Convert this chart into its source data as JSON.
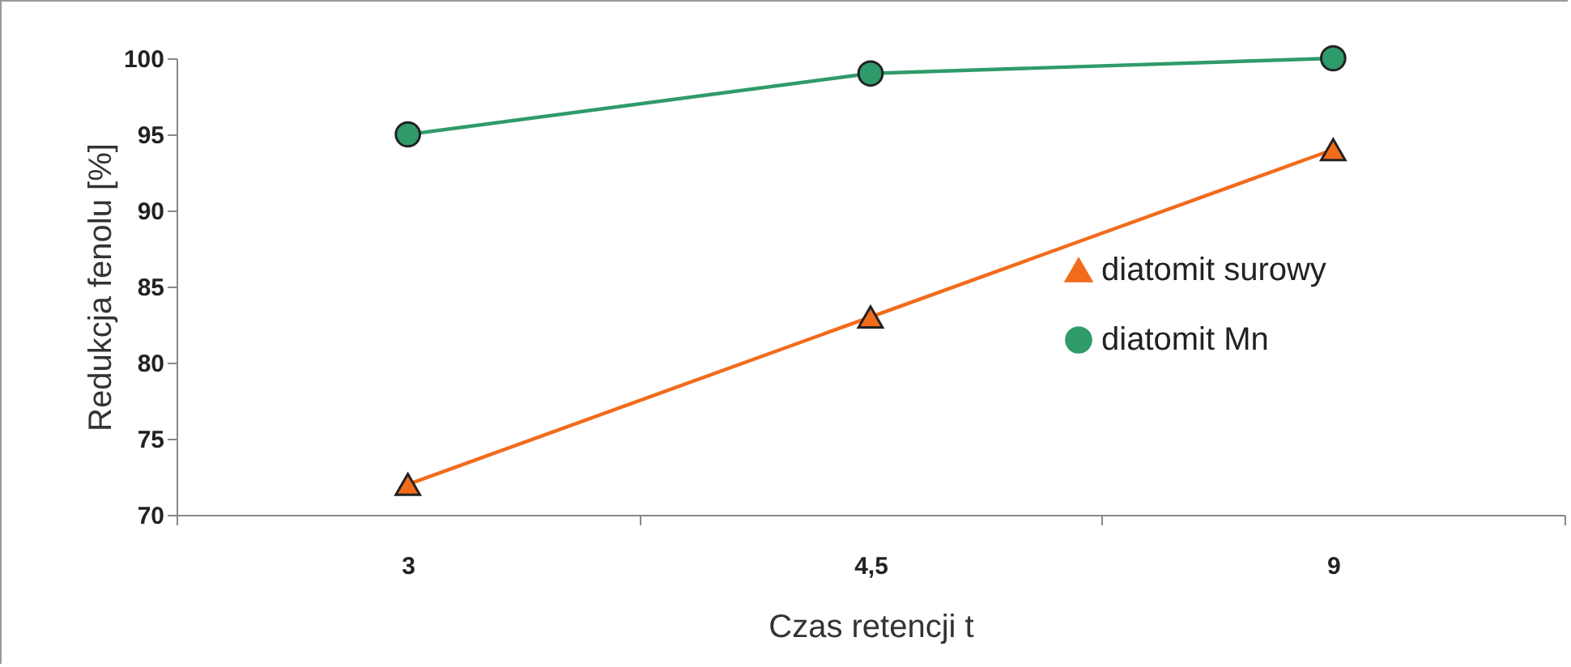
{
  "chart_data": {
    "type": "line",
    "xlabel": "Czas retencji t",
    "ylabel": "Redukcja  fenolu [%]",
    "categories": [
      "3",
      "4,5",
      "9"
    ],
    "series": [
      {
        "name": "diatomit surowy",
        "color": "#f26b1b",
        "marker": "triangle",
        "values": [
          72,
          83,
          94
        ]
      },
      {
        "name": "diatomit Mn",
        "color": "#2f9b6b",
        "marker": "circle",
        "values": [
          95,
          99,
          100
        ]
      }
    ],
    "ylim": [
      70,
      100
    ],
    "yticks": [
      70,
      75,
      80,
      85,
      90,
      95,
      100
    ],
    "grid": false,
    "legend": "right"
  }
}
